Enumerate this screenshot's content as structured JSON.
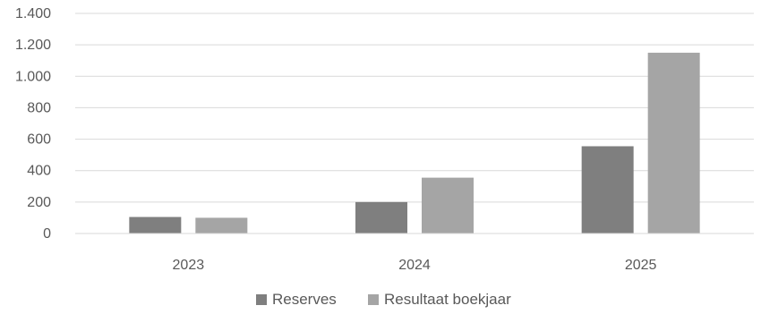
{
  "chart_data": {
    "type": "bar",
    "title": "",
    "xlabel": "",
    "ylabel": "",
    "categories": [
      "2023",
      "2024",
      "2025"
    ],
    "series": [
      {
        "name": "Reserves",
        "color": "#7f7f7f",
        "values": [
          105,
          200,
          555
        ]
      },
      {
        "name": "Resultaat boekjaar",
        "color": "#a5a5a5",
        "values": [
          100,
          355,
          1150
        ]
      }
    ],
    "ylim": [
      0,
      1400
    ],
    "yticks": [
      0,
      200,
      400,
      600,
      800,
      1000,
      1200,
      1400
    ],
    "ytick_labels": [
      "0",
      "200",
      "400",
      "600",
      "800",
      "1.000",
      "1.200",
      "1.400"
    ],
    "grid": true,
    "legend": "bottom-center"
  }
}
